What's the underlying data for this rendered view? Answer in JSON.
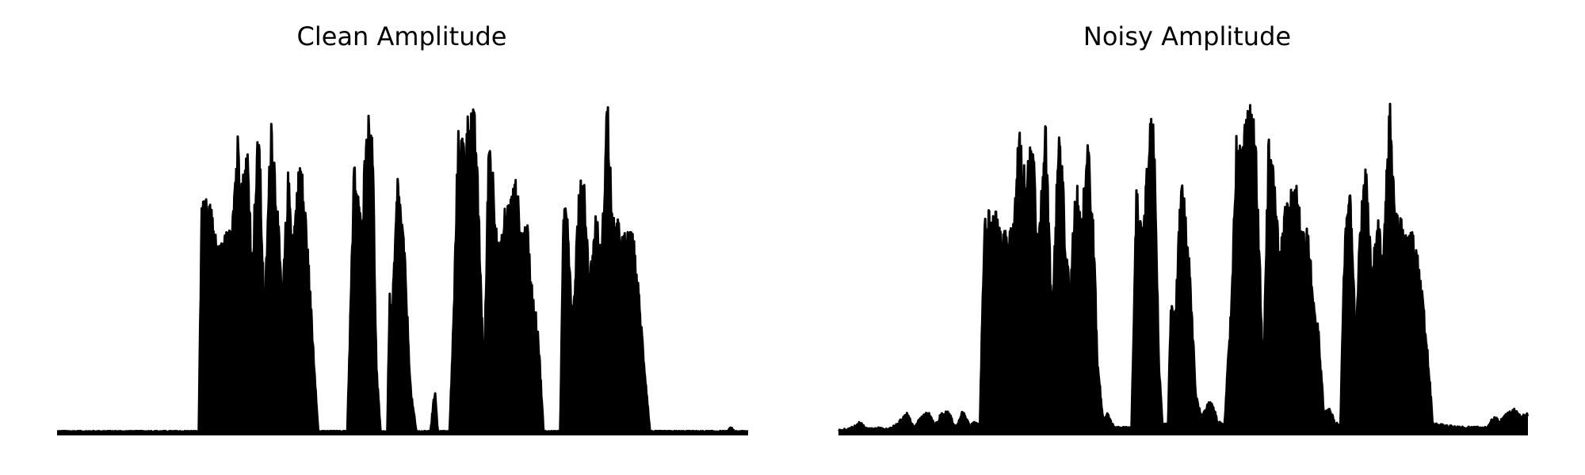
{
  "figure": {
    "background": "#ffffff",
    "line_color": "#000000"
  },
  "chart_data": [
    {
      "type": "area",
      "title": "Clean Amplitude",
      "xlabel": "",
      "ylabel": "",
      "axes_visible": false,
      "grid": false,
      "xlim": [
        0,
        1
      ],
      "ylim": [
        0,
        1
      ],
      "noise_floor": 0.01,
      "envelope": [
        [
          0.0,
          0.008
        ],
        [
          0.18,
          0.008
        ],
        [
          0.205,
          0.008
        ],
        [
          0.209,
          0.64
        ],
        [
          0.215,
          0.66
        ],
        [
          0.225,
          0.63
        ],
        [
          0.232,
          0.52
        ],
        [
          0.24,
          0.55
        ],
        [
          0.25,
          0.58
        ],
        [
          0.262,
          0.86
        ],
        [
          0.268,
          0.72
        ],
        [
          0.276,
          0.82
        ],
        [
          0.282,
          0.5
        ],
        [
          0.292,
          0.9
        ],
        [
          0.3,
          0.34
        ],
        [
          0.31,
          0.92
        ],
        [
          0.318,
          0.68
        ],
        [
          0.326,
          0.38
        ],
        [
          0.334,
          0.74
        ],
        [
          0.342,
          0.58
        ],
        [
          0.352,
          0.8
        ],
        [
          0.36,
          0.62
        ],
        [
          0.378,
          0.008
        ],
        [
          0.42,
          0.008
        ],
        [
          0.43,
          0.78
        ],
        [
          0.44,
          0.6
        ],
        [
          0.448,
          0.88
        ],
        [
          0.456,
          0.93
        ],
        [
          0.462,
          0.2
        ],
        [
          0.468,
          0.008
        ],
        [
          0.478,
          0.008
        ],
        [
          0.481,
          0.4
        ],
        [
          0.485,
          0.35
        ],
        [
          0.493,
          0.74
        ],
        [
          0.502,
          0.55
        ],
        [
          0.512,
          0.12
        ],
        [
          0.52,
          0.008
        ],
        [
          0.54,
          0.008
        ],
        [
          0.547,
          0.13
        ],
        [
          0.551,
          0.008
        ],
        [
          0.568,
          0.008
        ],
        [
          0.574,
          0.35
        ],
        [
          0.58,
          0.85
        ],
        [
          0.59,
          0.84
        ],
        [
          0.598,
          0.95
        ],
        [
          0.606,
          0.88
        ],
        [
          0.612,
          0.52
        ],
        [
          0.618,
          0.16
        ],
        [
          0.625,
          0.88
        ],
        [
          0.632,
          0.72
        ],
        [
          0.64,
          0.5
        ],
        [
          0.648,
          0.64
        ],
        [
          0.656,
          0.67
        ],
        [
          0.664,
          0.72
        ],
        [
          0.672,
          0.58
        ],
        [
          0.68,
          0.6
        ],
        [
          0.688,
          0.4
        ],
        [
          0.696,
          0.3
        ],
        [
          0.704,
          0.008
        ],
        [
          0.728,
          0.008
        ],
        [
          0.733,
          0.64
        ],
        [
          0.738,
          0.7
        ],
        [
          0.746,
          0.3
        ],
        [
          0.754,
          0.66
        ],
        [
          0.762,
          0.76
        ],
        [
          0.77,
          0.44
        ],
        [
          0.78,
          0.63
        ],
        [
          0.788,
          0.5
        ],
        [
          0.796,
          0.98
        ],
        [
          0.804,
          0.6
        ],
        [
          0.81,
          0.61
        ],
        [
          0.818,
          0.56
        ],
        [
          0.826,
          0.57
        ],
        [
          0.834,
          0.56
        ],
        [
          0.842,
          0.4
        ],
        [
          0.85,
          0.2
        ],
        [
          0.858,
          0.008
        ],
        [
          0.97,
          0.008
        ],
        [
          0.975,
          0.02
        ],
        [
          0.98,
          0.008
        ],
        [
          1.0,
          0.008
        ]
      ]
    },
    {
      "type": "area",
      "title": "Noisy Amplitude",
      "xlabel": "",
      "ylabel": "",
      "axes_visible": false,
      "grid": false,
      "xlim": [
        0,
        1
      ],
      "ylim": [
        0,
        1
      ],
      "noise_floor": 0.03,
      "envelope": [
        [
          0.0,
          0.005
        ],
        [
          0.012,
          0.012
        ],
        [
          0.02,
          0.02
        ],
        [
          0.03,
          0.035
        ],
        [
          0.04,
          0.02
        ],
        [
          0.05,
          0.015
        ],
        [
          0.06,
          0.02
        ],
        [
          0.07,
          0.01
        ],
        [
          0.09,
          0.04
        ],
        [
          0.1,
          0.06
        ],
        [
          0.11,
          0.02
        ],
        [
          0.12,
          0.05
        ],
        [
          0.13,
          0.065
        ],
        [
          0.14,
          0.03
        ],
        [
          0.15,
          0.06
        ],
        [
          0.16,
          0.065
        ],
        [
          0.17,
          0.02
        ],
        [
          0.18,
          0.065
        ],
        [
          0.19,
          0.03
        ],
        [
          0.2,
          0.04
        ],
        [
          0.205,
          0.02
        ],
        [
          0.212,
          0.65
        ],
        [
          0.22,
          0.62
        ],
        [
          0.228,
          0.64
        ],
        [
          0.236,
          0.56
        ],
        [
          0.246,
          0.58
        ],
        [
          0.252,
          0.6
        ],
        [
          0.262,
          0.86
        ],
        [
          0.272,
          0.72
        ],
        [
          0.282,
          0.86
        ],
        [
          0.29,
          0.52
        ],
        [
          0.3,
          0.91
        ],
        [
          0.31,
          0.34
        ],
        [
          0.32,
          0.92
        ],
        [
          0.328,
          0.62
        ],
        [
          0.336,
          0.38
        ],
        [
          0.344,
          0.74
        ],
        [
          0.352,
          0.6
        ],
        [
          0.362,
          0.83
        ],
        [
          0.37,
          0.58
        ],
        [
          0.376,
          0.2
        ],
        [
          0.384,
          0.04
        ],
        [
          0.39,
          0.06
        ],
        [
          0.4,
          0.02
        ],
        [
          0.425,
          0.02
        ],
        [
          0.432,
          0.7
        ],
        [
          0.442,
          0.56
        ],
        [
          0.45,
          0.87
        ],
        [
          0.458,
          0.92
        ],
        [
          0.465,
          0.2
        ],
        [
          0.47,
          0.03
        ],
        [
          0.478,
          0.03
        ],
        [
          0.482,
          0.38
        ],
        [
          0.488,
          0.34
        ],
        [
          0.498,
          0.75
        ],
        [
          0.508,
          0.55
        ],
        [
          0.518,
          0.12
        ],
        [
          0.526,
          0.05
        ],
        [
          0.54,
          0.1
        ],
        [
          0.55,
          0.04
        ],
        [
          0.56,
          0.03
        ],
        [
          0.57,
          0.38
        ],
        [
          0.577,
          0.86
        ],
        [
          0.588,
          0.85
        ],
        [
          0.596,
          0.94
        ],
        [
          0.604,
          0.88
        ],
        [
          0.61,
          0.56
        ],
        [
          0.616,
          0.16
        ],
        [
          0.624,
          0.86
        ],
        [
          0.632,
          0.72
        ],
        [
          0.64,
          0.5
        ],
        [
          0.648,
          0.64
        ],
        [
          0.656,
          0.68
        ],
        [
          0.664,
          0.72
        ],
        [
          0.672,
          0.58
        ],
        [
          0.68,
          0.62
        ],
        [
          0.688,
          0.4
        ],
        [
          0.696,
          0.3
        ],
        [
          0.704,
          0.06
        ],
        [
          0.712,
          0.07
        ],
        [
          0.72,
          0.04
        ],
        [
          0.728,
          0.02
        ],
        [
          0.734,
          0.56
        ],
        [
          0.742,
          0.7
        ],
        [
          0.75,
          0.3
        ],
        [
          0.758,
          0.66
        ],
        [
          0.766,
          0.76
        ],
        [
          0.774,
          0.46
        ],
        [
          0.782,
          0.63
        ],
        [
          0.79,
          0.5
        ],
        [
          0.8,
          0.98
        ],
        [
          0.808,
          0.62
        ],
        [
          0.816,
          0.6
        ],
        [
          0.824,
          0.56
        ],
        [
          0.832,
          0.57
        ],
        [
          0.84,
          0.5
        ],
        [
          0.848,
          0.38
        ],
        [
          0.856,
          0.2
        ],
        [
          0.862,
          0.03
        ],
        [
          0.9,
          0.02
        ],
        [
          0.94,
          0.02
        ],
        [
          0.95,
          0.05
        ],
        [
          0.96,
          0.04
        ],
        [
          0.97,
          0.06
        ],
        [
          0.98,
          0.07
        ],
        [
          0.99,
          0.05
        ],
        [
          1.0,
          0.06
        ]
      ]
    }
  ]
}
